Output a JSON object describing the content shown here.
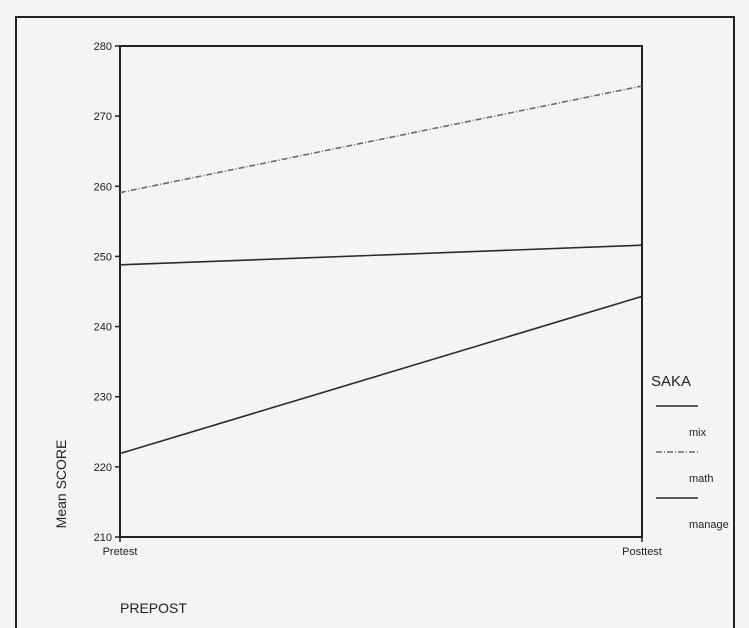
{
  "chart_data": {
    "type": "line",
    "title": "",
    "xlabel": "PREPOST",
    "ylabel": "Mean SCORE",
    "categories": [
      "Pretest",
      "Posttest"
    ],
    "ylim": [
      210,
      280
    ],
    "yticks": [
      210,
      220,
      230,
      240,
      250,
      260,
      270,
      280
    ],
    "grid": false,
    "legend": {
      "title": "SAKA",
      "position": "right",
      "entries": [
        "mix",
        "math",
        "manage"
      ]
    },
    "series": [
      {
        "name": "mix",
        "values": [
          248.8,
          251.6
        ],
        "color": "#2a2a2a",
        "dash": ""
      },
      {
        "name": "math",
        "values": [
          259.1,
          274.3
        ],
        "color": "#6a6a6a",
        "dash": "6,2,1,2"
      },
      {
        "name": "manage",
        "values": [
          221.9,
          244.3
        ],
        "color": "#2a2a2a",
        "dash": ""
      }
    ]
  }
}
